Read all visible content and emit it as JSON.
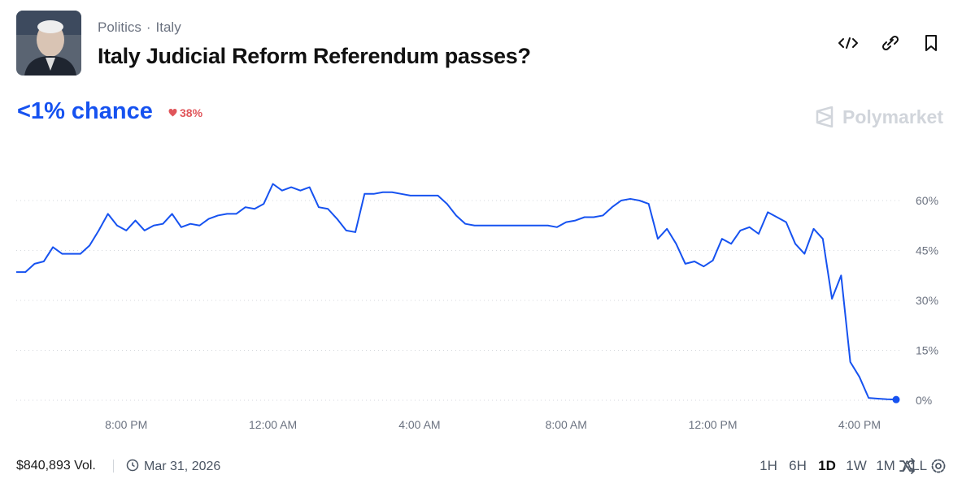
{
  "header": {
    "breadcrumb": [
      "Politics",
      "Italy"
    ],
    "title": "Italy Judicial Reform Referendum passes?"
  },
  "summary": {
    "chance": "<1% chance",
    "change": "38%"
  },
  "brand": "Polymarket",
  "chart_data": {
    "type": "line",
    "color": "#1652f0",
    "values": [
      38.5,
      38.5,
      41,
      41.7,
      46,
      44,
      44,
      44,
      46.5,
      51,
      56,
      52.5,
      51,
      54,
      51,
      52.5,
      53,
      56,
      52,
      53,
      52.5,
      54.5,
      55.5,
      56,
      56,
      58,
      57.5,
      59,
      65,
      63,
      64,
      63,
      64,
      58,
      57.5,
      54.5,
      51,
      50.5,
      62,
      62,
      62.5,
      62.5,
      62,
      61.5,
      61.5,
      61.5,
      61.5,
      59,
      55.5,
      53,
      52.5,
      52.5,
      52.5,
      52.5,
      52.5,
      52.5,
      52.5,
      52.5,
      52.5,
      52,
      53.5,
      54,
      55,
      55,
      55.5,
      58,
      60,
      60.5,
      60,
      59,
      48.5,
      51.5,
      47,
      41,
      41.7,
      40.2,
      42,
      48.5,
      47,
      51,
      52,
      50,
      56.5,
      55,
      53.5,
      47,
      44,
      51.5,
      48.5,
      30.5,
      37.5,
      11.5,
      7,
      0.7,
      0.5,
      0.3,
      0.2
    ],
    "xlim": [
      0,
      96
    ],
    "xticks": [
      {
        "value": 12,
        "label": "8:00 PM"
      },
      {
        "value": 28,
        "label": "12:00 AM"
      },
      {
        "value": 44,
        "label": "4:00 AM"
      },
      {
        "value": 60,
        "label": "8:00 AM"
      },
      {
        "value": 76,
        "label": "12:00 PM"
      },
      {
        "value": 92,
        "label": "4:00 PM"
      }
    ],
    "ylim": [
      0,
      70
    ],
    "yticks": [
      {
        "value": 0,
        "label": "0%"
      },
      {
        "value": 15,
        "label": "15%"
      },
      {
        "value": 30,
        "label": "30%"
      },
      {
        "value": 45,
        "label": "45%"
      },
      {
        "value": 60,
        "label": "60%"
      }
    ],
    "grid": true
  },
  "footer": {
    "volume": "$840,893 Vol.",
    "date": "Mar 31, 2026",
    "ranges": [
      "1H",
      "6H",
      "1D",
      "1W",
      "1M",
      "ALL"
    ],
    "selected_range": 2
  }
}
